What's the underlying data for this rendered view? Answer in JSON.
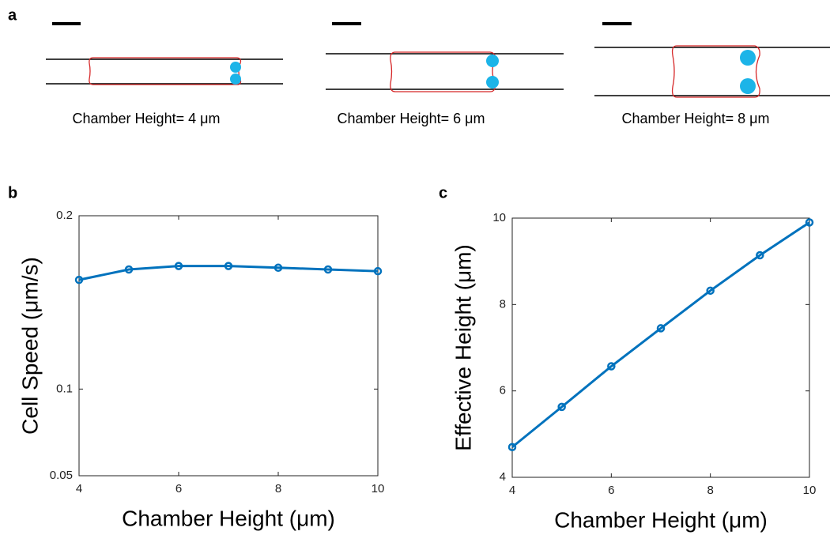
{
  "panel_a": {
    "panel_label": "a",
    "captions": [
      "Chamber Height= 4 μm",
      "Chamber Height= 6 μm",
      "Chamber Height= 8 μm"
    ]
  },
  "chart_data": [
    {
      "type": "line",
      "panel_label": "b",
      "xlabel": "Chamber Height (μm)",
      "ylabel": "Cell Speed (μm/s)",
      "x": [
        4,
        5,
        6,
        7,
        8,
        9,
        10
      ],
      "series": [
        {
          "color": "#0072BD",
          "values": [
            0.163,
            0.169,
            0.171,
            0.171,
            0.17,
            0.169,
            0.168
          ]
        }
      ],
      "xlim": [
        4,
        10
      ],
      "xticks": [
        4,
        6,
        8,
        10
      ],
      "ylim": [
        0.05,
        0.2
      ],
      "yticks": [
        0.05,
        0.1,
        0.2
      ]
    },
    {
      "type": "line",
      "panel_label": "c",
      "xlabel": "Chamber Height (μm)",
      "ylabel": "Effective Height (μm)",
      "x": [
        4,
        5,
        6,
        7,
        8,
        9,
        10
      ],
      "series": [
        {
          "color": "#0072BD",
          "values": [
            4.7,
            5.63,
            6.57,
            7.45,
            8.32,
            9.14,
            9.9
          ]
        }
      ],
      "xlim": [
        4,
        10
      ],
      "xticks": [
        4,
        6,
        8,
        10
      ],
      "ylim": [
        4,
        10
      ],
      "yticks": [
        4,
        6,
        8,
        10
      ]
    }
  ]
}
